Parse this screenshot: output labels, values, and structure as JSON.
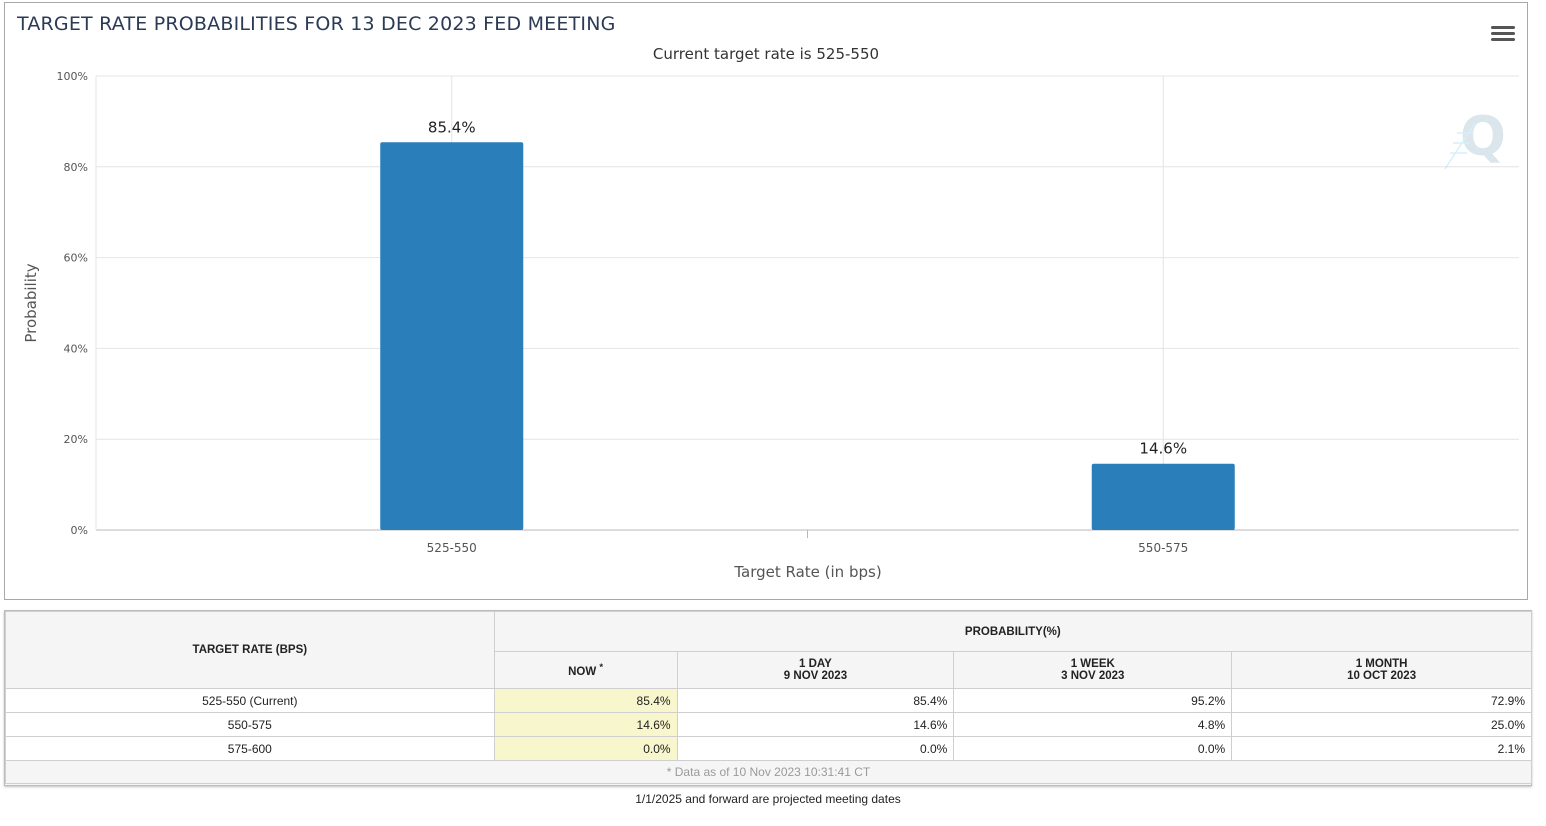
{
  "chart_data": {
    "type": "bar",
    "title": "TARGET RATE PROBABILITIES FOR 13 DEC 2023 FED MEETING",
    "subtitle": "Current target rate is 525-550",
    "categories": [
      "525-550",
      "550-575"
    ],
    "values": [
      85.4,
      14.6
    ],
    "data_labels": [
      "85.4%",
      "14.6%"
    ],
    "xlabel": "Target Rate (in bps)",
    "ylabel": "Probability",
    "ylim": [
      0,
      100
    ],
    "yticks": [
      "0%",
      "20%",
      "40%",
      "60%",
      "80%",
      "100%"
    ],
    "bar_color": "#2a7fba",
    "grid": true
  },
  "table": {
    "target_rate_header": "TARGET RATE (BPS)",
    "probability_header": "PROBABILITY(%)",
    "columns": [
      {
        "line1": "NOW",
        "line2": "*"
      },
      {
        "line1": "1 DAY",
        "line2": "9 NOV 2023"
      },
      {
        "line1": "1 WEEK",
        "line2": "3 NOV 2023"
      },
      {
        "line1": "1 MONTH",
        "line2": "10 OCT 2023"
      }
    ],
    "rows": [
      {
        "label": "525-550 (Current)",
        "values": [
          "85.4%",
          "85.4%",
          "95.2%",
          "72.9%"
        ]
      },
      {
        "label": "550-575",
        "values": [
          "14.6%",
          "14.6%",
          "4.8%",
          "25.0%"
        ]
      },
      {
        "label": "575-600",
        "values": [
          "0.0%",
          "0.0%",
          "0.0%",
          "2.1%"
        ]
      }
    ],
    "data_note": "* Data as of 10 Nov 2023 10:31:41 CT"
  },
  "footer_note": "1/1/2025 and forward are projected meeting dates",
  "icons": {
    "menu": "hamburger-menu-icon",
    "watermark": "q-logo-watermark"
  }
}
